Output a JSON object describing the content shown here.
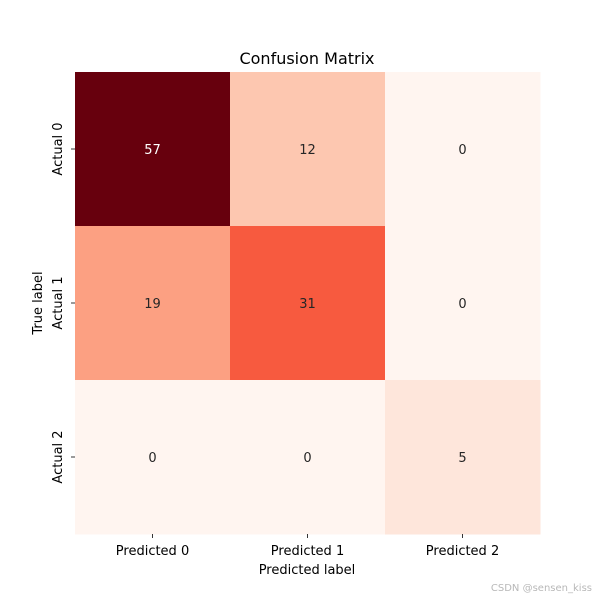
{
  "chart_data": {
    "type": "heatmap",
    "title": "Confusion Matrix",
    "xlabel": "Predicted label",
    "ylabel": "True label",
    "x_categories": [
      "Predicted 0",
      "Predicted 1",
      "Predicted 2"
    ],
    "y_categories": [
      "Actual 0",
      "Actual 1",
      "Actual 2"
    ],
    "values": [
      [
        57,
        12,
        0
      ],
      [
        19,
        31,
        0
      ],
      [
        0,
        0,
        5
      ]
    ],
    "colormap": "Reds",
    "color_min": 0,
    "color_max": 57,
    "color_scale": [
      "#fff5f0",
      "#fee0d2",
      "#fcbba1",
      "#fc9272",
      "#fb6a4a",
      "#ef3b2c",
      "#cb181d",
      "#a50f15",
      "#67000d"
    ],
    "grid": false,
    "colorbar": false
  },
  "watermark": "CSDN @sensen_kiss"
}
